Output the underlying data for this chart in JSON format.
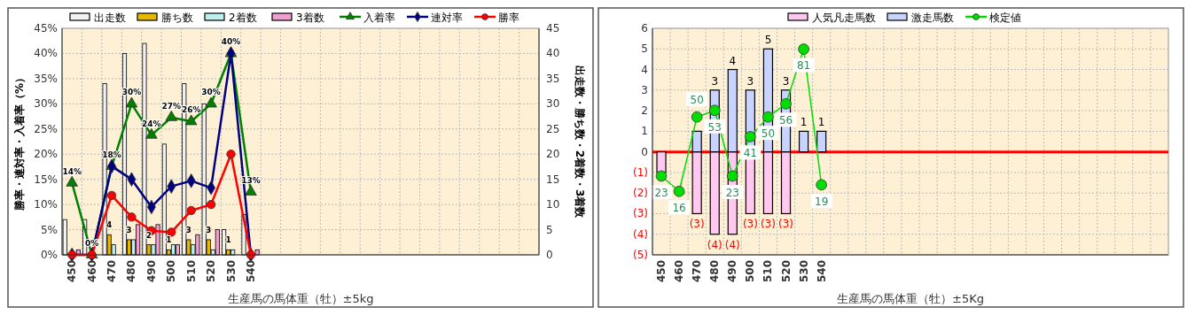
{
  "chart_data": [
    {
      "type": "bar",
      "xlabel": "生産馬の馬体重（牡）±5kg",
      "ylabel": "勝率・連対率・入着率（%）",
      "y2label": "出走数・勝ち数・2着数・3着数",
      "categories": [
        "450",
        "460",
        "470",
        "480",
        "490",
        "500",
        "510",
        "520",
        "530",
        "540",
        null,
        null,
        null,
        null,
        null,
        null,
        null,
        null,
        null,
        null,
        null,
        null,
        null,
        null
      ],
      "ylim": [
        0,
        45
      ],
      "yticks": [
        {
          "value": 0,
          "label": "0%"
        },
        {
          "value": 5,
          "label": "5%"
        },
        {
          "value": 10,
          "label": "10%"
        },
        {
          "value": 15,
          "label": "15%"
        },
        {
          "value": 20,
          "label": "20%"
        },
        {
          "value": 25,
          "label": "25%"
        },
        {
          "value": 30,
          "label": "30%"
        },
        {
          "value": 35,
          "label": "35%"
        },
        {
          "value": 40,
          "label": "40%"
        },
        {
          "value": 45,
          "label": "45%"
        }
      ],
      "y2lim": [
        0,
        45
      ],
      "y2ticks": [
        0,
        5,
        10,
        15,
        20,
        25,
        30,
        35,
        40,
        45
      ],
      "grid": true,
      "legend": "top",
      "series": [
        {
          "name": "出走数",
          "axis": "y2",
          "color": "#f2f2f2",
          "values": [
            7,
            7,
            34,
            40,
            42,
            22,
            34,
            30,
            5,
            8,
            null,
            null,
            null,
            null,
            null,
            null,
            null,
            null,
            null,
            null,
            null,
            null,
            null,
            null
          ]
        },
        {
          "name": "勝ち数",
          "axis": "y2",
          "color": "#e6b800",
          "values": [
            0,
            0,
            4,
            3,
            2,
            1,
            3,
            3,
            1,
            0,
            null,
            null,
            null,
            null,
            null,
            null,
            null,
            null,
            null,
            null,
            null,
            null,
            null,
            null
          ],
          "value_labels": [
            null,
            null,
            "4",
            "3",
            "2",
            "1",
            "3",
            "3",
            "1",
            null,
            null,
            null,
            null,
            null,
            null,
            null,
            null,
            null,
            null,
            null,
            null,
            null,
            null,
            null
          ]
        },
        {
          "name": "2着数",
          "axis": "y2",
          "color": "#bff0f0",
          "values": [
            0,
            0,
            2,
            3,
            2,
            2,
            2,
            1,
            1,
            0,
            null,
            null,
            null,
            null,
            null,
            null,
            null,
            null,
            null,
            null,
            null,
            null,
            null,
            null
          ]
        },
        {
          "name": "3着数",
          "axis": "y2",
          "color": "#f0a0d0",
          "values": [
            1,
            0,
            0,
            6,
            6,
            2,
            4,
            5,
            0,
            1,
            null,
            null,
            null,
            null,
            null,
            null,
            null,
            null,
            null,
            null,
            null,
            null,
            null,
            null
          ]
        },
        {
          "name": "入着率",
          "type": "line",
          "marker": "triangle",
          "color": "#008000",
          "values": [
            14.3,
            0,
            17.6,
            30,
            23.8,
            27.3,
            26.5,
            30,
            40,
            12.5,
            null,
            null,
            null,
            null,
            null,
            null,
            null,
            null,
            null,
            null,
            null,
            null,
            null,
            null
          ],
          "value_labels": [
            "14%",
            "0%",
            "18%",
            "30%",
            "24%",
            "27%",
            "26%",
            "30%",
            "40%",
            "13%",
            null,
            null,
            null,
            null,
            null,
            null,
            null,
            null,
            null,
            null,
            null,
            null,
            null,
            null
          ]
        },
        {
          "name": "連対率",
          "type": "line",
          "marker": "diamond",
          "color": "#000080",
          "values": [
            0,
            0,
            17.6,
            15,
            9.5,
            13.6,
            14.7,
            13.3,
            40,
            0,
            null,
            null,
            null,
            null,
            null,
            null,
            null,
            null,
            null,
            null,
            null,
            null,
            null,
            null
          ]
        },
        {
          "name": "勝率",
          "type": "line",
          "marker": "circle",
          "color": "#ff0000",
          "values": [
            0,
            0,
            11.8,
            7.5,
            4.8,
            4.5,
            8.8,
            10,
            20,
            0,
            null,
            null,
            null,
            null,
            null,
            null,
            null,
            null,
            null,
            null,
            null,
            null,
            null,
            null
          ]
        }
      ]
    },
    {
      "type": "bar",
      "xlabel": "生産馬の馬体重（牡）±5Kg",
      "categories": [
        "450",
        "460",
        "470",
        "480",
        "490",
        "500",
        "510",
        "520",
        "530",
        "540",
        null,
        null,
        null,
        null,
        null,
        null,
        null,
        null,
        null,
        null,
        null,
        null,
        null,
        null,
        null,
        null,
        null,
        null,
        null
      ],
      "ylim": [
        -5,
        6
      ],
      "y2lim": [
        -13,
        90.5
      ],
      "yticks": [
        {
          "value": -5,
          "label": "(5)"
        },
        {
          "value": -4,
          "label": "(4)"
        },
        {
          "value": -3,
          "label": "(3)"
        },
        {
          "value": -2,
          "label": "(2)"
        },
        {
          "value": -1,
          "label": "(1)"
        },
        0,
        1,
        2,
        3,
        4,
        5,
        6
      ],
      "grid": true,
      "legend": "top",
      "stacked": true,
      "ref_lines": [
        {
          "axis": "y",
          "value": 0,
          "color": "#ff0000"
        }
      ],
      "series": [
        {
          "name": "人気凡走馬数",
          "color": "#ffc8f0",
          "values": [
            -1,
            0,
            -3,
            -4,
            -4,
            -3,
            -3,
            -3,
            0,
            0,
            null,
            null,
            null,
            null,
            null,
            null,
            null,
            null,
            null,
            null,
            null,
            null,
            null,
            null,
            null,
            null,
            null,
            null,
            null
          ],
          "value_labels": [
            null,
            null,
            "(3)",
            "(4)",
            "(4)",
            "(3)",
            "(3)",
            "(3)",
            null,
            null,
            null,
            null,
            null,
            null,
            null,
            null,
            null,
            null,
            null,
            null,
            null,
            null,
            null,
            null,
            null,
            null,
            null,
            null,
            null
          ]
        },
        {
          "name": "激走馬数",
          "color": "#c8d4ff",
          "values": [
            0,
            0,
            1,
            3,
            4,
            3,
            5,
            3,
            1,
            1,
            null,
            null,
            null,
            null,
            null,
            null,
            null,
            null,
            null,
            null,
            null,
            null,
            null,
            null,
            null,
            null,
            null,
            null,
            null
          ],
          "value_labels": [
            null,
            null,
            null,
            "3",
            "4",
            "3",
            "5",
            "3",
            "1",
            "1",
            null,
            null,
            null,
            null,
            null,
            null,
            null,
            null,
            null,
            null,
            null,
            null,
            null,
            null,
            null,
            null,
            null,
            null,
            null
          ]
        },
        {
          "name": "検定値",
          "type": "line",
          "marker": "circle",
          "axis": "y2",
          "color": "#00dd00",
          "values": [
            23,
            16,
            50,
            53,
            23,
            41,
            50,
            56,
            81,
            19,
            null,
            null,
            null,
            null,
            null,
            null,
            null,
            null,
            null,
            null,
            null,
            null,
            null,
            null,
            null,
            null,
            null,
            null,
            null
          ],
          "value_labels": [
            "23",
            "16",
            "50",
            "53",
            "23",
            "41",
            "50",
            "56",
            "81",
            "19",
            null,
            null,
            null,
            null,
            null,
            null,
            null,
            null,
            null,
            null,
            null,
            null,
            null,
            null,
            null,
            null,
            null,
            null,
            null
          ]
        }
      ]
    }
  ]
}
